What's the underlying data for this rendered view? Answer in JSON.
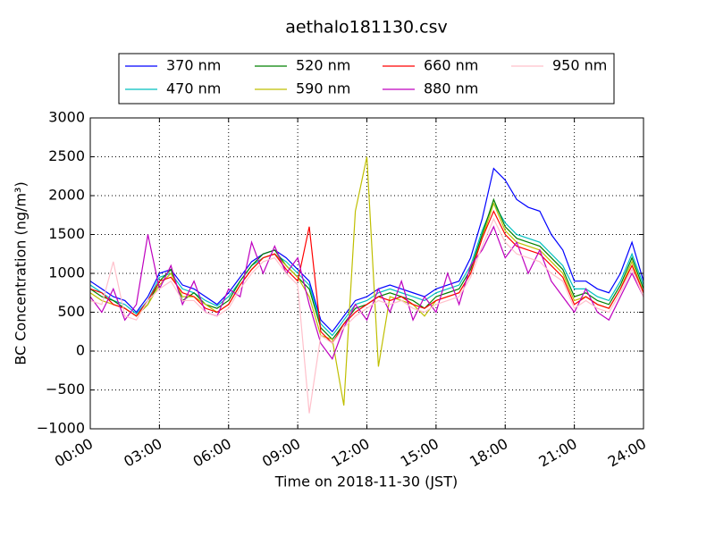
{
  "chart_data": {
    "type": "line",
    "title": "aethalo181130.csv",
    "x_label": "Time on 2018-11-30 (JST)",
    "y_label": "BC Concentration (ng/m³)",
    "x": [
      "00:00",
      "00:30",
      "01:00",
      "01:30",
      "02:00",
      "02:30",
      "03:00",
      "03:30",
      "04:00",
      "04:30",
      "05:00",
      "05:30",
      "06:00",
      "06:30",
      "07:00",
      "07:30",
      "08:00",
      "08:30",
      "09:00",
      "09:30",
      "10:00",
      "10:30",
      "11:00",
      "11:30",
      "12:00",
      "12:30",
      "13:00",
      "13:30",
      "14:00",
      "14:30",
      "15:00",
      "15:30",
      "16:00",
      "16:30",
      "17:00",
      "17:30",
      "18:00",
      "18:30",
      "19:00",
      "19:30",
      "20:00",
      "20:30",
      "21:00",
      "21:30",
      "22:00",
      "22:30",
      "23:00",
      "23:30",
      "24:00"
    ],
    "xlim": [
      "00:00",
      "24:00"
    ],
    "xticks": [
      "00:00",
      "03:00",
      "06:00",
      "09:00",
      "12:00",
      "15:00",
      "18:00",
      "21:00",
      "24:00"
    ],
    "ylim": [
      -1000,
      3000
    ],
    "yticks": [
      {
        "value": -1000,
        "label": "−1000"
      },
      {
        "value": -500,
        "label": "−500"
      },
      0,
      500,
      1000,
      1500,
      2000,
      2500,
      3000
    ],
    "grid": true,
    "legend": "top",
    "series": [
      {
        "name": "370 nm",
        "color": "#0000ff",
        "values": [
          900,
          800,
          700,
          650,
          500,
          700,
          1000,
          1050,
          850,
          800,
          700,
          600,
          750,
          950,
          1150,
          1250,
          1300,
          1200,
          1050,
          900,
          400,
          250,
          450,
          650,
          700,
          800,
          850,
          800,
          750,
          700,
          800,
          850,
          900,
          1200,
          1700,
          2350,
          2200,
          1950,
          1850,
          1800,
          1500,
          1300,
          900,
          900,
          800,
          750,
          1000,
          1400,
          900
        ]
      },
      {
        "name": "470 nm",
        "color": "#00bfbf",
        "values": [
          850,
          750,
          650,
          600,
          480,
          650,
          950,
          1000,
          800,
          750,
          650,
          580,
          700,
          900,
          1100,
          1200,
          1250,
          1150,
          1000,
          850,
          350,
          200,
          400,
          600,
          650,
          750,
          800,
          750,
          700,
          650,
          750,
          800,
          850,
          1100,
          1550,
          1900,
          1650,
          1500,
          1450,
          1400,
          1250,
          1100,
          800,
          800,
          700,
          650,
          900,
          1250,
          850
        ]
      },
      {
        "name": "520 nm",
        "color": "#008000",
        "values": [
          800,
          700,
          650,
          550,
          450,
          600,
          900,
          1050,
          650,
          750,
          600,
          550,
          650,
          900,
          1100,
          1250,
          1300,
          1100,
          950,
          800,
          300,
          150,
          350,
          550,
          600,
          700,
          750,
          700,
          650,
          550,
          700,
          750,
          800,
          1050,
          1500,
          1950,
          1600,
          1450,
          1400,
          1350,
          1200,
          1050,
          700,
          750,
          650,
          600,
          850,
          1200,
          800
        ]
      },
      {
        "name": "590 nm",
        "color": "#bfbf00",
        "values": [
          750,
          650,
          600,
          550,
          450,
          600,
          850,
          1000,
          700,
          700,
          600,
          500,
          600,
          850,
          1050,
          1200,
          1250,
          1100,
          950,
          700,
          200,
          150,
          -700,
          1800,
          2500,
          -200,
          700,
          650,
          600,
          450,
          650,
          700,
          750,
          1000,
          1450,
          1900,
          1550,
          1400,
          1350,
          1300,
          1150,
          1000,
          650,
          700,
          600,
          550,
          800,
          1150,
          750
        ]
      },
      {
        "name": "660 nm",
        "color": "#ff0000",
        "values": [
          800,
          750,
          600,
          550,
          450,
          650,
          900,
          950,
          750,
          700,
          550,
          500,
          600,
          850,
          1050,
          1200,
          1250,
          1050,
          900,
          1600,
          250,
          100,
          350,
          500,
          600,
          700,
          650,
          700,
          600,
          550,
          650,
          700,
          750,
          1000,
          1450,
          1800,
          1500,
          1350,
          1300,
          1250,
          1100,
          950,
          600,
          700,
          600,
          550,
          800,
          1100,
          750
        ]
      },
      {
        "name": "880 nm",
        "color": "#bf00bf",
        "values": [
          700,
          500,
          800,
          400,
          600,
          1500,
          800,
          1100,
          600,
          900,
          500,
          450,
          800,
          700,
          1400,
          1000,
          1350,
          1000,
          1200,
          600,
          100,
          -100,
          300,
          600,
          400,
          800,
          500,
          900,
          400,
          700,
          500,
          1000,
          600,
          1100,
          1300,
          1600,
          1200,
          1400,
          1000,
          1300,
          900,
          700,
          500,
          800,
          500,
          400,
          700,
          1000,
          700
        ]
      },
      {
        "name": "950 nm",
        "color": "#ffc0cb",
        "values": [
          650,
          600,
          1150,
          450,
          400,
          650,
          800,
          900,
          650,
          650,
          500,
          450,
          550,
          800,
          1000,
          1150,
          1200,
          1000,
          850,
          -800,
          200,
          100,
          300,
          450,
          550,
          650,
          600,
          650,
          550,
          500,
          600,
          650,
          700,
          950,
          1350,
          1700,
          1400,
          1250,
          1200,
          1150,
          1000,
          900,
          550,
          650,
          550,
          500,
          750,
          1050,
          700
        ]
      }
    ]
  }
}
